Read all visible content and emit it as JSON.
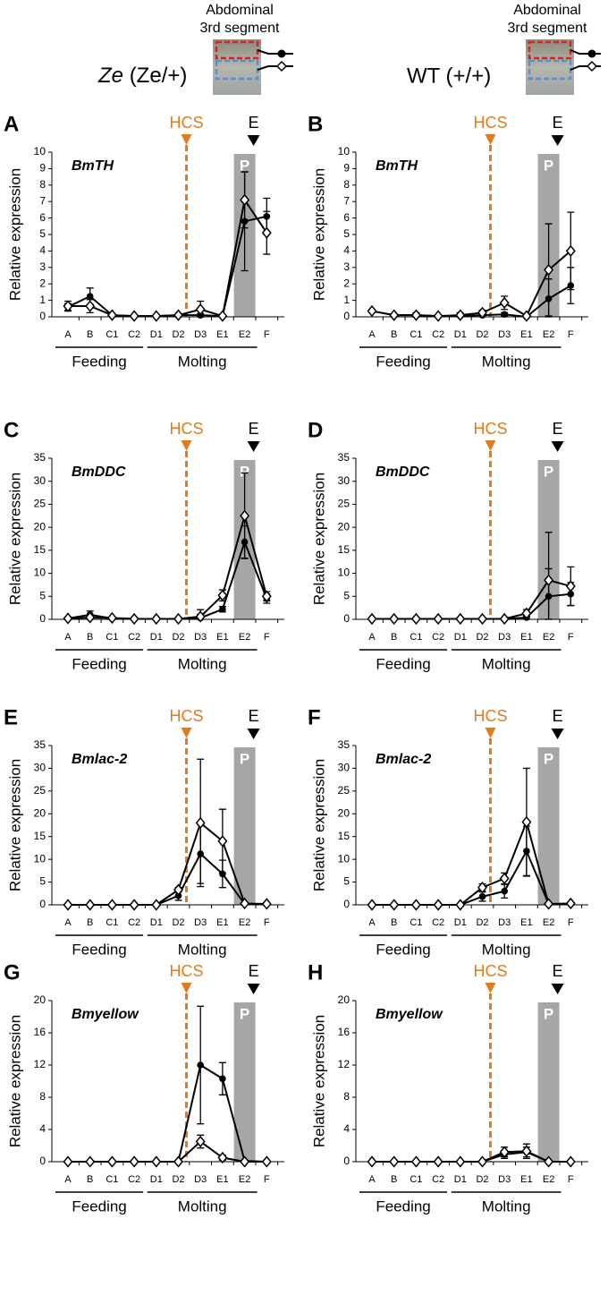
{
  "header": {
    "segment_label": [
      "Abdominal",
      "3rd segment"
    ],
    "genotype_left": [
      "Ze",
      "(Ze/+)"
    ],
    "genotype_right": "WT (+/+)"
  },
  "chart_data": [
    {
      "type": "line",
      "panel": "A",
      "title": "BmTH",
      "ylabel": "Relative expression",
      "hcs_label": "HCS",
      "e_label": "E",
      "p_label": "P",
      "groups": [
        "Feeding",
        "Molting"
      ],
      "categories": [
        "A",
        "B",
        "C1",
        "C2",
        "D1",
        "D2",
        "D3",
        "E1",
        "E2",
        "F"
      ],
      "ylim": [
        0,
        10
      ],
      "yticks": [
        0,
        1,
        2,
        3,
        4,
        5,
        6,
        7,
        8,
        9,
        10
      ],
      "series": [
        {
          "marker": "circle",
          "color": "#000000",
          "values": [
            0.6,
            1.25,
            0.1,
            0.05,
            0.05,
            0.1,
            0.1,
            0.05,
            5.8,
            6.1
          ],
          "errors": [
            0.2,
            0.5,
            0.05,
            0.02,
            0.02,
            0.05,
            0.1,
            0.02,
            3.0,
            1.1
          ]
        },
        {
          "marker": "diamond",
          "color": "#000000",
          "values": [
            0.65,
            0.65,
            0.1,
            0.05,
            0.05,
            0.1,
            0.45,
            0.05,
            7.1,
            5.1
          ],
          "errors": [
            0.3,
            0.4,
            0.05,
            0.02,
            0.02,
            0.05,
            0.5,
            0.02,
            1.7,
            1.3
          ]
        }
      ]
    },
    {
      "type": "line",
      "panel": "B",
      "title": "BmTH",
      "ylabel": "Relative expression",
      "hcs_label": "HCS",
      "e_label": "E",
      "p_label": "P",
      "groups": [
        "Feeding",
        "Molting"
      ],
      "categories": [
        "A",
        "B",
        "C1",
        "C2",
        "D1",
        "D2",
        "D3",
        "E1",
        "E2",
        "F"
      ],
      "ylim": [
        0,
        10
      ],
      "yticks": [
        0,
        1,
        2,
        3,
        4,
        5,
        6,
        7,
        8,
        9,
        10
      ],
      "series": [
        {
          "marker": "circle",
          "color": "#000000",
          "values": [
            0.35,
            0.1,
            0.1,
            0.05,
            0.05,
            0.1,
            0.15,
            0.0,
            1.1,
            1.9
          ],
          "errors": [
            0.1,
            0.05,
            0.1,
            0.05,
            0.1,
            0.1,
            0.1,
            0.02,
            1.2,
            1.1
          ]
        },
        {
          "marker": "diamond",
          "color": "#000000",
          "values": [
            0.35,
            0.1,
            0.1,
            0.05,
            0.1,
            0.25,
            0.85,
            0.05,
            2.85,
            4.0
          ],
          "errors": [
            0.1,
            0.05,
            0.15,
            0.05,
            0.15,
            0.15,
            0.4,
            0.02,
            2.8,
            2.35
          ]
        }
      ]
    },
    {
      "type": "line",
      "panel": "C",
      "title": "BmDDC",
      "ylabel": "Relative expression",
      "hcs_label": "HCS",
      "e_label": "E",
      "p_label": "P",
      "groups": [
        "Feeding",
        "Molting"
      ],
      "categories": [
        "A",
        "B",
        "C1",
        "C2",
        "D1",
        "D2",
        "D3",
        "E1",
        "E2",
        "F"
      ],
      "ylim": [
        0,
        35
      ],
      "yticks": [
        0,
        5,
        10,
        15,
        20,
        25,
        30,
        35
      ],
      "series": [
        {
          "marker": "circle",
          "color": "#000000",
          "values": [
            0.2,
            1.0,
            0.2,
            0.1,
            0.1,
            0.1,
            0.3,
            2.2,
            16.8,
            4.5
          ],
          "errors": [
            0.1,
            0.8,
            0.2,
            0.05,
            0.05,
            0.05,
            0.8,
            0.6,
            3.5,
            1.0
          ]
        },
        {
          "marker": "diamond",
          "color": "#000000",
          "values": [
            0.2,
            0.4,
            0.3,
            0.1,
            0.1,
            0.1,
            0.6,
            5.2,
            22.5,
            5.0
          ],
          "errors": [
            0.1,
            0.3,
            0.2,
            0.05,
            0.05,
            0.05,
            1.5,
            1.2,
            9.3,
            1.0
          ]
        }
      ]
    },
    {
      "type": "line",
      "panel": "D",
      "title": "BmDDC",
      "ylabel": "Relative expression",
      "hcs_label": "HCS",
      "e_label": "E",
      "p_label": "P",
      "groups": [
        "Feeding",
        "Molting"
      ],
      "categories": [
        "A",
        "B",
        "C1",
        "C2",
        "D1",
        "D2",
        "D3",
        "E1",
        "E2",
        "F"
      ],
      "ylim": [
        0,
        35
      ],
      "yticks": [
        0,
        5,
        10,
        15,
        20,
        25,
        30,
        35
      ],
      "series": [
        {
          "marker": "circle",
          "color": "#000000",
          "values": [
            0.1,
            0.1,
            0.1,
            0.1,
            0.1,
            0.1,
            0.1,
            0.4,
            5.0,
            5.5
          ],
          "errors": [
            0.05,
            0.05,
            0.05,
            0.05,
            0.05,
            0.05,
            0.1,
            0.3,
            6.0,
            2.5
          ]
        },
        {
          "marker": "diamond",
          "color": "#000000",
          "values": [
            0.1,
            0.1,
            0.1,
            0.1,
            0.1,
            0.1,
            0.1,
            1.3,
            8.5,
            7.2
          ],
          "errors": [
            0.05,
            0.05,
            0.05,
            0.05,
            0.05,
            0.05,
            0.1,
            0.8,
            10.4,
            4.2
          ]
        }
      ]
    },
    {
      "type": "line",
      "panel": "E",
      "title": "Bmlac-2",
      "ylabel": "Relative expression",
      "hcs_label": "HCS",
      "e_label": "E",
      "p_label": "P",
      "groups": [
        "Feeding",
        "Molting"
      ],
      "categories": [
        "A",
        "B",
        "C1",
        "C2",
        "D1",
        "D2",
        "D3",
        "E1",
        "E2",
        "F"
      ],
      "ylim": [
        0,
        35
      ],
      "yticks": [
        0,
        5,
        10,
        15,
        20,
        25,
        30,
        35
      ],
      "series": [
        {
          "marker": "circle",
          "color": "#000000",
          "values": [
            0,
            0,
            0,
            0,
            0,
            2.0,
            11.2,
            6.8,
            0.2,
            0.2
          ],
          "errors": [
            0,
            0,
            0,
            0,
            0,
            1.0,
            6.5,
            3.0,
            0.1,
            0.1
          ]
        },
        {
          "marker": "diamond",
          "color": "#000000",
          "values": [
            0,
            0,
            0,
            0,
            0,
            3.3,
            18.0,
            14.0,
            0.3,
            0.2
          ],
          "errors": [
            0,
            0,
            0,
            0,
            0,
            0.5,
            14.0,
            7.0,
            0.1,
            0.1
          ]
        }
      ]
    },
    {
      "type": "line",
      "panel": "F",
      "title": "Bmlac-2",
      "ylabel": "Relative expression",
      "hcs_label": "HCS",
      "e_label": "E",
      "p_label": "P",
      "groups": [
        "Feeding",
        "Molting"
      ],
      "categories": [
        "A",
        "B",
        "C1",
        "C2",
        "D1",
        "D2",
        "D3",
        "E1",
        "E2",
        "F"
      ],
      "ylim": [
        0,
        35
      ],
      "yticks": [
        0,
        5,
        10,
        15,
        20,
        25,
        30,
        35
      ],
      "series": [
        {
          "marker": "circle",
          "color": "#000000",
          "values": [
            0,
            0,
            0,
            0,
            0,
            1.8,
            3.0,
            11.8,
            0.2,
            0.2
          ],
          "errors": [
            0,
            0,
            0,
            0,
            0,
            1.0,
            1.5,
            5.5,
            0.1,
            0.1
          ]
        },
        {
          "marker": "diamond",
          "color": "#000000",
          "values": [
            0,
            0,
            0,
            0,
            0,
            3.8,
            5.8,
            18.2,
            0.2,
            0.3
          ],
          "errors": [
            0,
            0,
            0,
            0,
            0,
            0.8,
            1.2,
            11.8,
            0.1,
            0.1
          ]
        }
      ]
    },
    {
      "type": "line",
      "panel": "G",
      "title": "Bmyellow",
      "ylabel": "Relative expression",
      "hcs_label": "HCS",
      "e_label": "E",
      "p_label": "P",
      "groups": [
        "Feeding",
        "Molting"
      ],
      "categories": [
        "A",
        "B",
        "C1",
        "C2",
        "D1",
        "D2",
        "D3",
        "E1",
        "E2",
        "F"
      ],
      "ylim": [
        0,
        20
      ],
      "yticks": [
        0,
        4,
        8,
        12,
        16,
        20
      ],
      "series": [
        {
          "marker": "circle",
          "color": "#000000",
          "values": [
            0,
            0,
            0,
            0,
            0,
            0,
            12.0,
            10.3,
            0.1,
            0
          ],
          "errors": [
            0,
            0,
            0,
            0,
            0,
            0,
            7.3,
            2.0,
            0.05,
            0
          ]
        },
        {
          "marker": "diamond",
          "color": "#000000",
          "values": [
            0,
            0,
            0,
            0,
            0,
            0,
            2.5,
            0.5,
            0,
            0
          ],
          "errors": [
            0,
            0,
            0,
            0,
            0,
            0,
            0.8,
            0.3,
            0,
            0
          ]
        }
      ]
    },
    {
      "type": "line",
      "panel": "H",
      "title": "Bmyellow",
      "ylabel": "Relative expression",
      "hcs_label": "HCS",
      "e_label": "E",
      "p_label": "P",
      "groups": [
        "Feeding",
        "Molting"
      ],
      "categories": [
        "A",
        "B",
        "C1",
        "C2",
        "D1",
        "D2",
        "D3",
        "E1",
        "E2",
        "F"
      ],
      "ylim": [
        0,
        20
      ],
      "yticks": [
        0,
        4,
        8,
        12,
        16,
        20
      ],
      "series": [
        {
          "marker": "circle",
          "color": "#000000",
          "values": [
            0,
            0,
            0,
            0,
            0,
            0,
            0.9,
            1.2,
            0,
            0
          ],
          "errors": [
            0,
            0,
            0,
            0,
            0,
            0,
            0.5,
            0.6,
            0,
            0
          ]
        },
        {
          "marker": "diamond",
          "color": "#000000",
          "values": [
            0,
            0,
            0,
            0,
            0,
            0,
            1.2,
            1.3,
            0,
            0
          ],
          "errors": [
            0,
            0,
            0,
            0,
            0,
            0,
            0.6,
            0.9,
            0,
            0
          ]
        }
      ]
    }
  ]
}
